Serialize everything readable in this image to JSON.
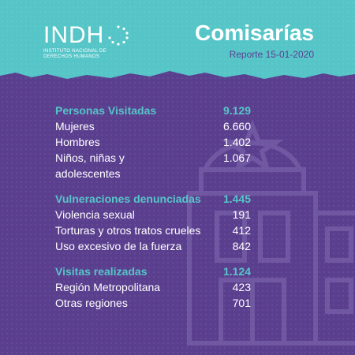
{
  "logo": {
    "mark": "INDH",
    "subtitle_1": "INSTITUTO NACIONAL DE",
    "subtitle_2": "DERECHOS HUMANOS"
  },
  "header": {
    "title": "Comisarías",
    "report": "Reporte 15-01-2020"
  },
  "sections": [
    {
      "heading": "Personas Visitadas",
      "total": "9.129",
      "rows": [
        {
          "label": "Mujeres",
          "value": "6.660"
        },
        {
          "label": "Hombres",
          "value": "1.402"
        },
        {
          "label_1": "Niños, niñas y",
          "label_2": "adolescentes",
          "value": "1.067"
        }
      ]
    },
    {
      "heading": "Vulneraciones denunciadas",
      "total": "1.445",
      "rows": [
        {
          "label": "Violencia sexual",
          "value": "191"
        },
        {
          "label": "Torturas y otros tratos crueles",
          "value": "412"
        },
        {
          "label": "Uso excesivo de la fuerza",
          "value": "842"
        }
      ]
    },
    {
      "heading": "Visitas realizadas",
      "total": "1.124",
      "rows": [
        {
          "label": "Región Metropolitana",
          "value": "423"
        },
        {
          "label": "Otras regiones",
          "value": "701"
        }
      ]
    }
  ],
  "colors": {
    "teal": "#56c5c8",
    "purple": "#5b3f8f",
    "white": "#ffffff"
  },
  "icons": {
    "logo": "indh-dotted-circle-icon",
    "background": "police-station-building-icon"
  }
}
